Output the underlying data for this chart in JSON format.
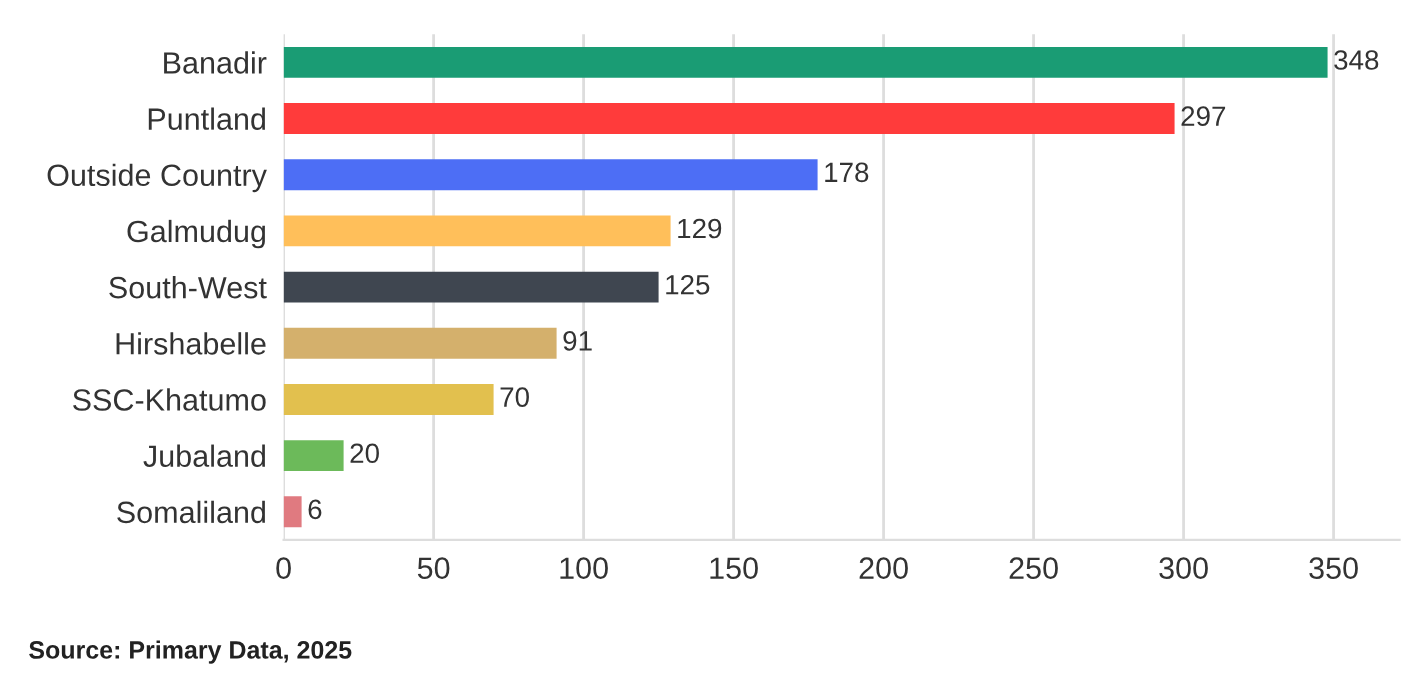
{
  "chart_data": {
    "type": "bar",
    "orientation": "horizontal",
    "categories": [
      "Banadir",
      "Puntland",
      "Outside Country",
      "Galmudug",
      "South-West",
      "Hirshabelle",
      "SSC-Khatumo",
      "Jubaland",
      "Somaliland"
    ],
    "values": [
      348,
      297,
      178,
      129,
      125,
      91,
      70,
      20,
      6
    ],
    "colors": [
      "#1a9c74",
      "#ff3b3b",
      "#4d6ef5",
      "#ffbf5a",
      "#3f4650",
      "#d4b06c",
      "#e2c04e",
      "#6cba5a",
      "#e07a80"
    ],
    "xlim": [
      0,
      372
    ],
    "xticks": [
      0,
      50,
      100,
      150,
      200,
      250,
      300,
      350
    ],
    "grid": "x",
    "data_labels": true,
    "annotations": [
      "Source: Primary Data, 2025"
    ]
  }
}
